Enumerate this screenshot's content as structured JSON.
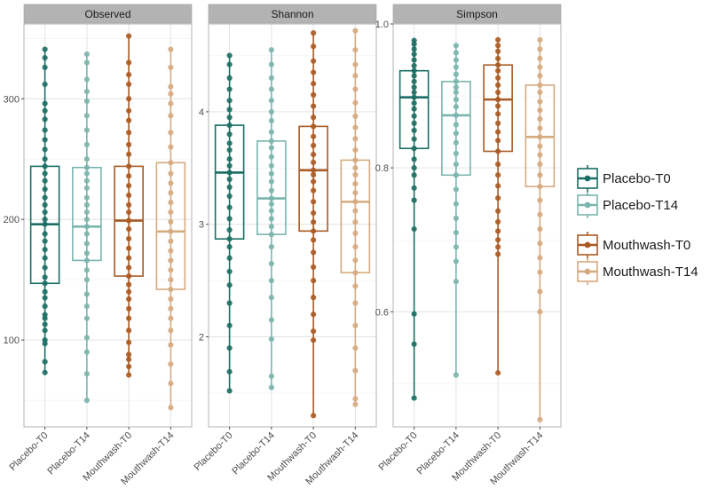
{
  "chart_data": {
    "type": "box",
    "groups": [
      "Placebo-T0",
      "Placebo-T14",
      "Mouthwash-T0",
      "Mouthwash-T14"
    ],
    "colors": {
      "Placebo-T0": "#1b6e64",
      "Placebo-T14": "#7ab5ae",
      "Mouthwash-T0": "#a85a24",
      "Mouthwash-T14": "#d5aa7f"
    },
    "legend": {
      "position": "right",
      "entries": [
        {
          "label": "Placebo-T0",
          "group": "Placebo-T0"
        },
        {
          "label": "Placebo-T14",
          "group": "Placebo-T14"
        },
        {
          "label": "Mouthwash-T0",
          "group": "Mouthwash-T0"
        },
        {
          "label": "Mouthwash-T14",
          "group": "Mouthwash-T14"
        }
      ]
    },
    "panels": [
      {
        "title": "Observed",
        "ylim": [
          28,
          362
        ],
        "yticks": [
          100,
          200,
          300
        ],
        "ytick_labels": [
          "100",
          "200",
          "300"
        ],
        "ygrid_minor": [
          50,
          150,
          250,
          350
        ],
        "boxes": [
          {
            "group": "Placebo-T0",
            "min": 73,
            "q1": 147,
            "median": 196,
            "q3": 244,
            "max": 341,
            "points": [
              73,
              82,
              97,
              100,
              108,
              113,
              118,
              121,
              128,
              135,
              140,
              147,
              152,
              160,
              168,
              175,
              182,
              188,
              196,
              200,
              206,
              212,
              218,
              225,
              232,
              238,
              244,
              250,
              258,
              266,
              274,
              283,
              290,
              296,
              312,
              326,
              334,
              341
            ]
          },
          {
            "group": "Placebo-T14",
            "min": 50,
            "q1": 166,
            "median": 194,
            "q3": 243,
            "max": 337,
            "points": [
              50,
              72,
              90,
              102,
              118,
              128,
              138,
              150,
              158,
              166,
              172,
              180,
              188,
              194,
              200,
              206,
              212,
              218,
              226,
              232,
              238,
              243,
              250,
              262,
              274,
              286,
              298,
              306,
              316,
              330,
              337
            ]
          },
          {
            "group": "Mouthwash-T0",
            "min": 71,
            "q1": 153,
            "median": 199,
            "q3": 244,
            "max": 352,
            "points": [
              71,
              78,
              84,
              88,
              98,
              108,
              118,
              126,
              134,
              140,
              146,
              153,
              160,
              168,
              176,
              184,
              192,
              199,
              206,
              212,
              220,
              228,
              236,
              244,
              254,
              262,
              272,
              282,
              290,
              300,
              312,
              320,
              330,
              352
            ]
          },
          {
            "group": "Mouthwash-T14",
            "min": 44,
            "q1": 142,
            "median": 190,
            "q3": 247,
            "max": 341,
            "points": [
              44,
              64,
              80,
              96,
              108,
              118,
              126,
              134,
              142,
              150,
              158,
              166,
              174,
              182,
              190,
              198,
              206,
              214,
              222,
              230,
              238,
              247,
              260,
              272,
              286,
              296,
              304,
              310,
              326,
              341
            ]
          }
        ]
      },
      {
        "title": "Shannon",
        "ylim": [
          1.2,
          4.78
        ],
        "yticks": [
          2,
          3,
          4
        ],
        "ytick_labels": [
          "2",
          "3",
          "4"
        ],
        "ygrid_minor": [
          1.5,
          2.5,
          3.5,
          4.5
        ],
        "boxes": [
          {
            "group": "Placebo-T0",
            "min": 1.52,
            "q1": 2.87,
            "median": 3.46,
            "q3": 3.88,
            "max": 4.5,
            "points": [
              1.52,
              1.69,
              1.9,
              2.1,
              2.3,
              2.46,
              2.58,
              2.7,
              2.8,
              2.87,
              2.95,
              3.05,
              3.15,
              3.25,
              3.33,
              3.4,
              3.46,
              3.52,
              3.58,
              3.66,
              3.72,
              3.8,
              3.88,
              3.95,
              4.02,
              4.1,
              4.2,
              4.3,
              4.42,
              4.5
            ]
          },
          {
            "group": "Placebo-T14",
            "min": 1.55,
            "q1": 2.91,
            "median": 3.23,
            "q3": 3.74,
            "max": 4.55,
            "points": [
              1.55,
              1.65,
              1.98,
              2.15,
              2.35,
              2.5,
              2.65,
              2.8,
              2.91,
              2.98,
              3.05,
              3.12,
              3.18,
              3.23,
              3.3,
              3.38,
              3.45,
              3.52,
              3.6,
              3.68,
              3.74,
              3.82,
              3.92,
              4.0,
              4.1,
              4.2,
              4.3,
              4.42,
              4.55
            ]
          },
          {
            "group": "Mouthwash-T0",
            "min": 1.3,
            "q1": 2.94,
            "median": 3.48,
            "q3": 3.87,
            "max": 4.7,
            "points": [
              1.3,
              1.97,
              2.05,
              2.2,
              2.35,
              2.5,
              2.62,
              2.75,
              2.86,
              2.94,
              3.02,
              3.1,
              3.2,
              3.3,
              3.38,
              3.44,
              3.48,
              3.55,
              3.62,
              3.7,
              3.78,
              3.87,
              3.95,
              4.05,
              4.15,
              4.25,
              4.35,
              4.45,
              4.58,
              4.7
            ]
          },
          {
            "group": "Mouthwash-T14",
            "min": 1.4,
            "q1": 2.57,
            "median": 3.2,
            "q3": 3.57,
            "max": 4.72,
            "points": [
              1.4,
              1.45,
              1.7,
              1.9,
              2.1,
              2.3,
              2.45,
              2.57,
              2.68,
              2.8,
              2.92,
              3.02,
              3.12,
              3.2,
              3.28,
              3.36,
              3.44,
              3.5,
              3.57,
              3.66,
              3.76,
              3.86,
              3.96,
              4.08,
              4.2,
              4.32,
              4.42,
              4.55,
              4.72
            ]
          }
        ]
      },
      {
        "title": "Simpson",
        "ylim": [
          0.44,
          1.0
        ],
        "yticks": [
          0.6,
          0.8,
          1.0
        ],
        "ytick_labels": [
          "0.6",
          "0.8",
          "1.0"
        ],
        "ygrid_minor": [
          0.5,
          0.7,
          0.9
        ],
        "boxes": [
          {
            "group": "Placebo-T0",
            "min": 0.48,
            "q1": 0.827,
            "median": 0.898,
            "q3": 0.935,
            "max": 0.977,
            "points": [
              0.48,
              0.555,
              0.597,
              0.715,
              0.755,
              0.772,
              0.79,
              0.8,
              0.812,
              0.827,
              0.84,
              0.852,
              0.862,
              0.872,
              0.882,
              0.89,
              0.898,
              0.905,
              0.912,
              0.92,
              0.928,
              0.935,
              0.942,
              0.95,
              0.958,
              0.965,
              0.972,
              0.977
            ]
          },
          {
            "group": "Placebo-T14",
            "min": 0.512,
            "q1": 0.79,
            "median": 0.873,
            "q3": 0.92,
            "max": 0.97,
            "points": [
              0.512,
              0.642,
              0.67,
              0.69,
              0.71,
              0.73,
              0.75,
              0.77,
              0.79,
              0.805,
              0.82,
              0.835,
              0.848,
              0.86,
              0.873,
              0.885,
              0.895,
              0.905,
              0.912,
              0.92,
              0.93,
              0.94,
              0.95,
              0.96,
              0.97
            ]
          },
          {
            "group": "Mouthwash-T0",
            "min": 0.515,
            "q1": 0.823,
            "median": 0.895,
            "q3": 0.943,
            "max": 0.978,
            "points": [
              0.515,
              0.68,
              0.69,
              0.7,
              0.712,
              0.725,
              0.74,
              0.758,
              0.775,
              0.79,
              0.805,
              0.823,
              0.838,
              0.85,
              0.862,
              0.875,
              0.886,
              0.895,
              0.905,
              0.915,
              0.925,
              0.935,
              0.943,
              0.952,
              0.962,
              0.97,
              0.978
            ]
          },
          {
            "group": "Mouthwash-T14",
            "min": 0.45,
            "q1": 0.774,
            "median": 0.843,
            "q3": 0.915,
            "max": 0.978,
            "points": [
              0.45,
              0.6,
              0.628,
              0.655,
              0.675,
              0.695,
              0.715,
              0.735,
              0.755,
              0.774,
              0.79,
              0.805,
              0.818,
              0.83,
              0.843,
              0.855,
              0.868,
              0.88,
              0.892,
              0.905,
              0.915,
              0.928,
              0.94,
              0.952,
              0.965,
              0.978
            ]
          }
        ]
      }
    ]
  }
}
